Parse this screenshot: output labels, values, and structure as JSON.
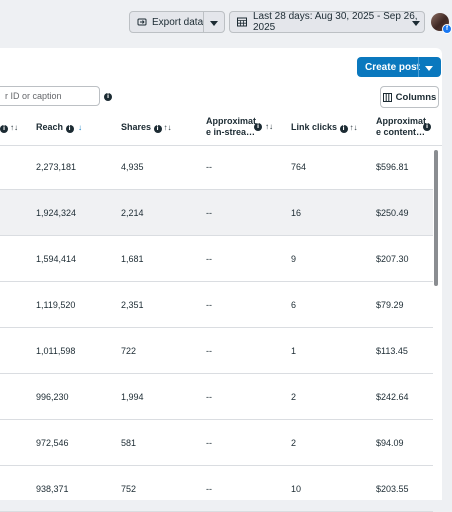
{
  "toolbar": {
    "export_label": "Export data",
    "date_range": "Last 28 days: Aug 30, 2025 - Sep 26, 2025"
  },
  "actions": {
    "create_post": "Create post",
    "columns": "Columns"
  },
  "search": {
    "placeholder": "r ID or caption"
  },
  "headers": {
    "reach": "Reach",
    "shares": "Shares",
    "approx_instream_l1": "Approximat",
    "approx_instream_l2": "e in-strea…",
    "link_clicks": "Link clicks",
    "approx_content_l1": "Approximat",
    "approx_content_l2": "e content…"
  },
  "rows": [
    {
      "reach": "2,273,181",
      "shares": "4,935",
      "instream": "--",
      "clicks": "764",
      "content": "$596.81"
    },
    {
      "reach": "1,924,324",
      "shares": "2,214",
      "instream": "--",
      "clicks": "16",
      "content": "$250.49"
    },
    {
      "reach": "1,594,414",
      "shares": "1,681",
      "instream": "--",
      "clicks": "9",
      "content": "$207.30"
    },
    {
      "reach": "1,119,520",
      "shares": "2,351",
      "instream": "--",
      "clicks": "6",
      "content": "$79.29"
    },
    {
      "reach": "1,011,598",
      "shares": "722",
      "instream": "--",
      "clicks": "1",
      "content": "$113.45"
    },
    {
      "reach": "996,230",
      "shares": "1,994",
      "instream": "--",
      "clicks": "2",
      "content": "$242.64"
    },
    {
      "reach": "972,546",
      "shares": "581",
      "instream": "--",
      "clicks": "2",
      "content": "$94.09"
    },
    {
      "reach": "938,371",
      "shares": "752",
      "instream": "--",
      "clicks": "10",
      "content": "$203.55"
    }
  ],
  "colors": {
    "primary": "#0a78be",
    "highlight_row": "#f0f1f3",
    "sort_active": "#0a78be"
  }
}
